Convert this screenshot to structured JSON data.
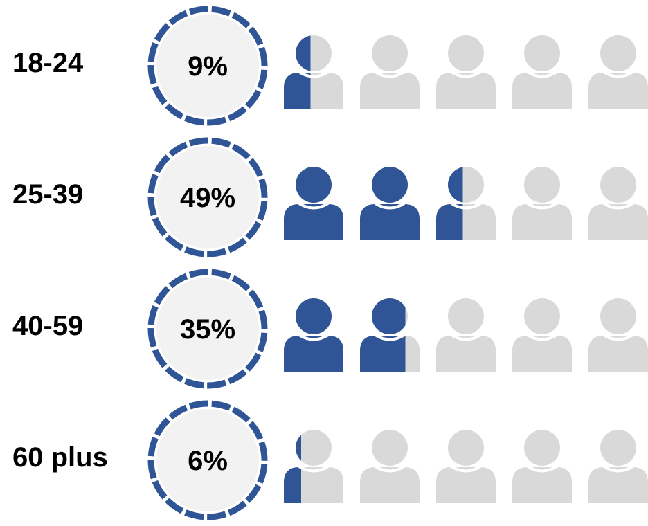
{
  "colors": {
    "accent": "#2f5597",
    "inactive": "#d9d9d9",
    "ring_fill": "#f2f2f2"
  },
  "icons_per_row": 5,
  "icon_name": "person-icon",
  "chart_data": {
    "type": "pictogram",
    "title": "",
    "categories": [
      "18-24",
      "25-39",
      "40-59",
      "60 plus"
    ],
    "values": [
      9,
      49,
      35,
      6
    ],
    "value_labels": [
      "9%",
      "49%",
      "35%",
      "6%"
    ],
    "unit": "%"
  }
}
